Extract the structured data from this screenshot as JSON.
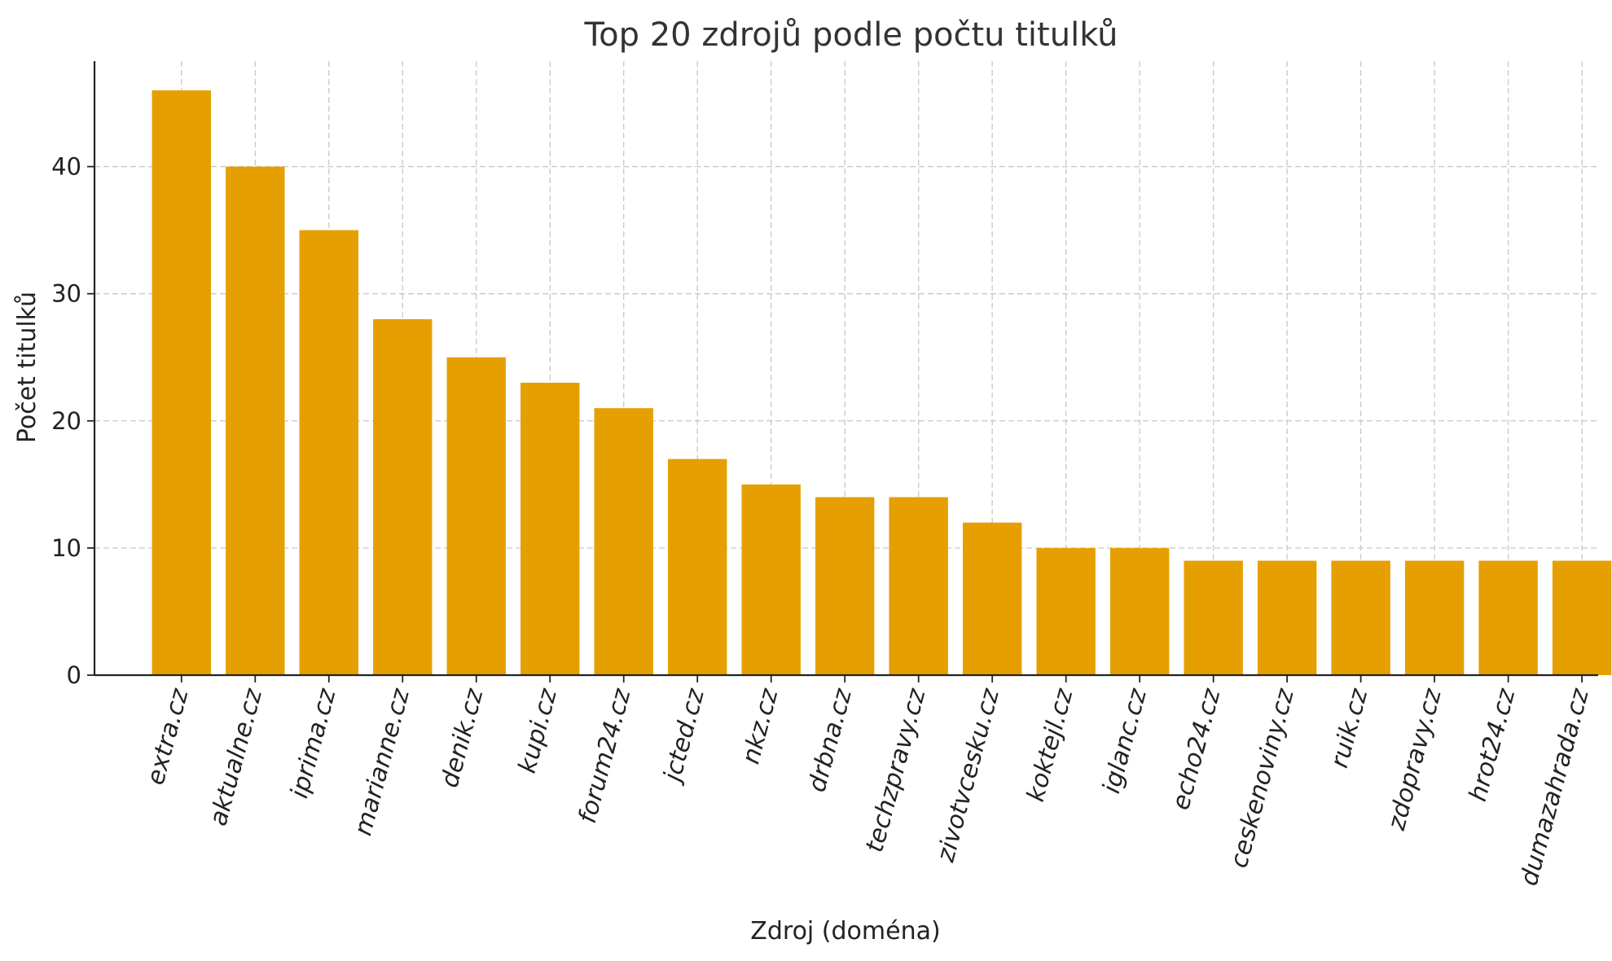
{
  "chart_data": {
    "type": "bar",
    "title": "Top 20 zdrojů podle počtu titulků",
    "xlabel": "Zdroj (doména)",
    "ylabel": "Počet titulků",
    "categories": [
      "extra.cz",
      "aktualne.cz",
      "iprima.cz",
      "marianne.cz",
      "denik.cz",
      "kupi.cz",
      "forum24.cz",
      "jcted.cz",
      "nkz.cz",
      "drbna.cz",
      "techzpravy.cz",
      "zivotvcesku.cz",
      "koktejl.cz",
      "iglanc.cz",
      "echo24.cz",
      "ceskenoviny.cz",
      "ruik.cz",
      "zdopravy.cz",
      "hrot24.cz",
      "dumazahrada.cz"
    ],
    "values": [
      46,
      40,
      35,
      28,
      25,
      23,
      21,
      17,
      15,
      14,
      14,
      12,
      10,
      10,
      9,
      9,
      9,
      9,
      9,
      9
    ],
    "ylim": [
      0,
      48.3
    ],
    "yticks": [
      0,
      10,
      20,
      30,
      40
    ],
    "bar_color": "#E69F00",
    "grid": true,
    "grid_style": "dashed",
    "legend": "none",
    "xtick_rotation": "75deg italic"
  }
}
